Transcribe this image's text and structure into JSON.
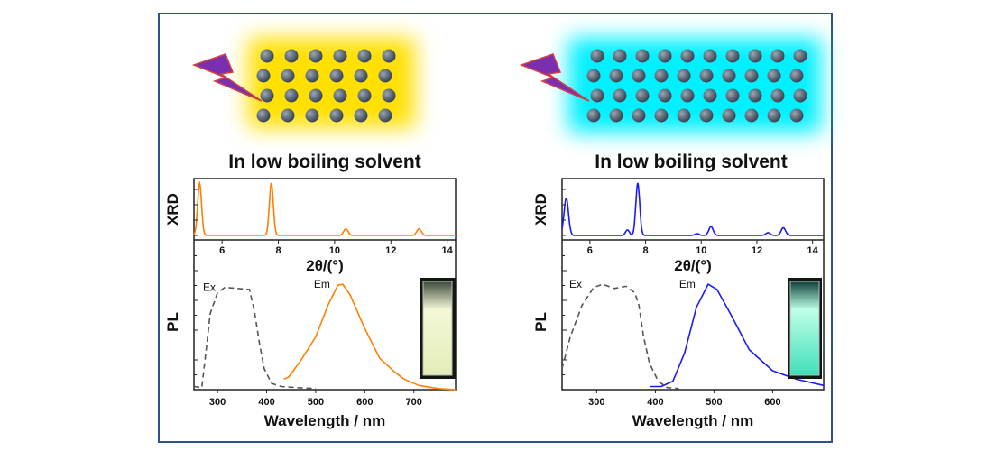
{
  "colors": {
    "frame": "#2f4f8f",
    "left_series": "#ff8000",
    "right_series": "#1a1aff",
    "excitation": "#555555",
    "left_glow": "#ffe000",
    "right_glow": "#00f0ff",
    "bolt": "#7a2fb0"
  },
  "chart_data": [
    {
      "type": "line",
      "panel": "left",
      "caption": "In low boiling solvent",
      "xrd": {
        "ylabel": "XRD",
        "xlabel": "2θ/(°)",
        "xlim": [
          5.0,
          14.3
        ],
        "ylim": [
          0,
          1.05
        ],
        "xticks": [
          6,
          8,
          10,
          12,
          14
        ],
        "baseline": 0.05,
        "peaks": [
          [
            5.2,
            0.95,
            0.07
          ],
          [
            7.75,
            0.95,
            0.07
          ],
          [
            10.4,
            0.12,
            0.08
          ],
          [
            13.0,
            0.12,
            0.08
          ]
        ]
      },
      "pl": {
        "ylabel": "PL",
        "xlabel": "Wavelength / nm",
        "xlim": [
          252,
          785
        ],
        "ylim": [
          0,
          1.42
        ],
        "xticks": [
          300,
          400,
          500,
          600,
          700
        ],
        "series": [
          {
            "name": "Ex",
            "style": "dashed",
            "points": [
              [
                252,
                0.03
              ],
              [
                268,
                0.02
              ],
              [
                275,
                0.3
              ],
              [
                285,
                0.72
              ],
              [
                300,
                0.92
              ],
              [
                315,
                0.97
              ],
              [
                340,
                0.96
              ],
              [
                365,
                0.95
              ],
              [
                375,
                0.75
              ],
              [
                385,
                0.45
              ],
              [
                395,
                0.2
              ],
              [
                410,
                0.06
              ],
              [
                430,
                0.03
              ],
              [
                460,
                0.02
              ],
              [
                500,
                0.01
              ]
            ]
          },
          {
            "name": "Em",
            "style": "solid",
            "points": [
              [
                435,
                0.1
              ],
              [
                445,
                0.12
              ],
              [
                470,
                0.28
              ],
              [
                500,
                0.5
              ],
              [
                525,
                0.8
              ],
              [
                545,
                0.99
              ],
              [
                555,
                1.0
              ],
              [
                570,
                0.9
              ],
              [
                600,
                0.58
              ],
              [
                630,
                0.3
              ],
              [
                660,
                0.17
              ],
              [
                680,
                0.1
              ],
              [
                710,
                0.04
              ],
              [
                750,
                0.01
              ],
              [
                785,
                0.0
              ]
            ]
          }
        ]
      }
    },
    {
      "type": "line",
      "panel": "right",
      "caption": "In low boiling solvent",
      "xrd": {
        "ylabel": "XRD",
        "xlabel": "2θ/(°)",
        "xlim": [
          5.0,
          14.4
        ],
        "ylim": [
          0,
          1.05
        ],
        "xticks": [
          6,
          8,
          10,
          12,
          14
        ],
        "baseline": 0.05,
        "peaks": [
          [
            5.15,
            0.68,
            0.08
          ],
          [
            7.35,
            0.1,
            0.07
          ],
          [
            7.72,
            0.95,
            0.07
          ],
          [
            9.85,
            0.03,
            0.08
          ],
          [
            10.35,
            0.16,
            0.08
          ],
          [
            12.4,
            0.05,
            0.08
          ],
          [
            12.95,
            0.14,
            0.08
          ]
        ]
      },
      "pl": {
        "ylabel": "PL",
        "xlabel": "Wavelength / nm",
        "xlim": [
          241,
          687
        ],
        "ylim": [
          0,
          1.42
        ],
        "xticks": [
          300,
          400,
          500,
          600
        ],
        "series": [
          {
            "name": "Ex",
            "style": "dashed",
            "points": [
              [
                241,
                0.2
              ],
              [
                255,
                0.5
              ],
              [
                275,
                0.8
              ],
              [
                295,
                0.97
              ],
              [
                310,
                1.0
              ],
              [
                330,
                0.96
              ],
              [
                350,
                0.98
              ],
              [
                365,
                0.92
              ],
              [
                372,
                0.8
              ],
              [
                380,
                0.5
              ],
              [
                390,
                0.25
              ],
              [
                405,
                0.08
              ],
              [
                420,
                0.02
              ],
              [
                440,
                0.01
              ]
            ]
          },
          {
            "name": "Em",
            "style": "solid",
            "points": [
              [
                390,
                0.03
              ],
              [
                410,
                0.03
              ],
              [
                430,
                0.08
              ],
              [
                450,
                0.35
              ],
              [
                470,
                0.78
              ],
              [
                490,
                1.0
              ],
              [
                505,
                0.95
              ],
              [
                530,
                0.7
              ],
              [
                560,
                0.38
              ],
              [
                600,
                0.18
              ],
              [
                640,
                0.1
              ],
              [
                687,
                0.04
              ]
            ]
          }
        ]
      }
    }
  ]
}
